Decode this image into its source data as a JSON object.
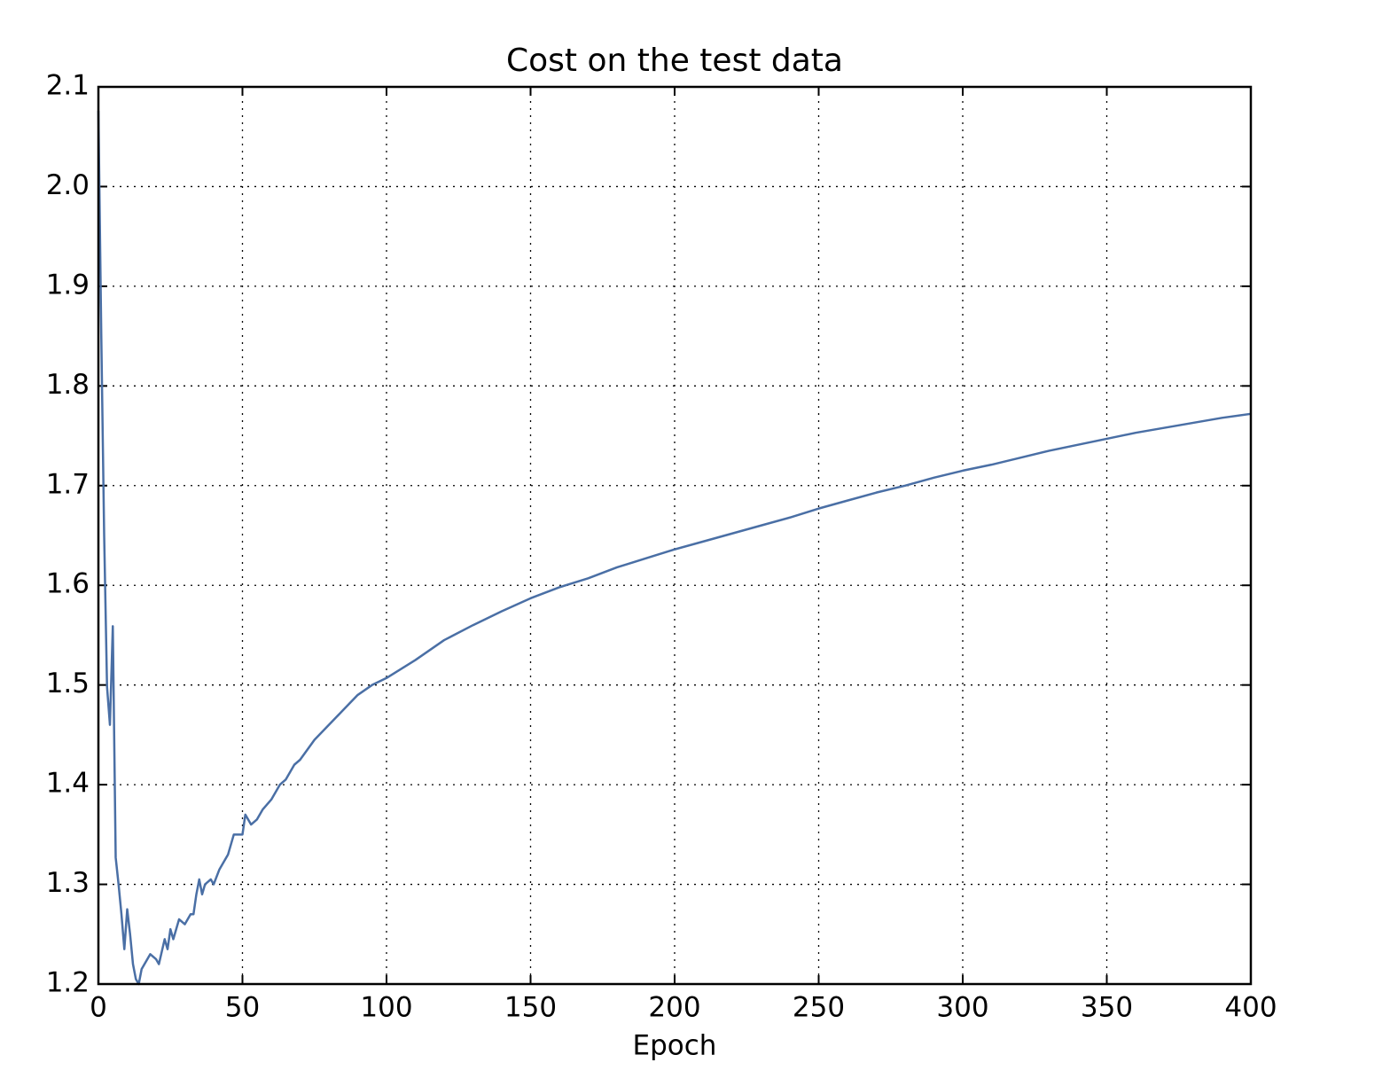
{
  "chart_data": {
    "type": "line",
    "title": "Cost on the test data",
    "x_label": "Epoch",
    "x": [
      0,
      1,
      2,
      3,
      4,
      5,
      6,
      7,
      8,
      9,
      10,
      11,
      12,
      13,
      14,
      15,
      17,
      18,
      20,
      21,
      23,
      24,
      25,
      26,
      28,
      30,
      32,
      33,
      34,
      35,
      36,
      37,
      39,
      40,
      42,
      45,
      47,
      50,
      51,
      53,
      55,
      57,
      60,
      63,
      65,
      68,
      70,
      75,
      80,
      85,
      90,
      95,
      100,
      110,
      120,
      130,
      140,
      150,
      160,
      170,
      180,
      190,
      200,
      210,
      220,
      230,
      240,
      250,
      260,
      270,
      280,
      290,
      300,
      310,
      320,
      330,
      340,
      350,
      360,
      370,
      380,
      390,
      400
    ],
    "values": [
      2.076,
      1.85,
      1.65,
      1.498,
      1.46,
      1.559,
      1.327,
      1.3,
      1.27,
      1.235,
      1.275,
      1.25,
      1.22,
      1.205,
      1.2,
      1.215,
      1.225,
      1.23,
      1.225,
      1.22,
      1.245,
      1.235,
      1.255,
      1.245,
      1.265,
      1.26,
      1.27,
      1.27,
      1.29,
      1.305,
      1.29,
      1.3,
      1.305,
      1.3,
      1.315,
      1.33,
      1.35,
      1.35,
      1.37,
      1.36,
      1.365,
      1.375,
      1.385,
      1.4,
      1.405,
      1.42,
      1.425,
      1.445,
      1.46,
      1.475,
      1.49,
      1.5,
      1.507,
      1.525,
      1.545,
      1.56,
      1.574,
      1.587,
      1.598,
      1.607,
      1.618,
      1.627,
      1.636,
      1.644,
      1.652,
      1.66,
      1.668,
      1.677,
      1.685,
      1.693,
      1.7,
      1.708,
      1.715,
      1.721,
      1.728,
      1.735,
      1.741,
      1.747,
      1.753,
      1.758,
      1.763,
      1.768,
      1.772
    ],
    "color": "#4a6fa5",
    "xlim": [
      0,
      400
    ],
    "xticks": [
      0,
      50,
      100,
      150,
      200,
      250,
      300,
      350,
      400
    ],
    "ylim": [
      1.2,
      2.1
    ],
    "yticks": [
      1.2,
      1.3,
      1.4,
      1.5,
      1.6,
      1.7,
      1.8,
      1.9,
      {
        "value": 2,
        "label": "2.0"
      },
      2.1
    ],
    "grid": true
  }
}
